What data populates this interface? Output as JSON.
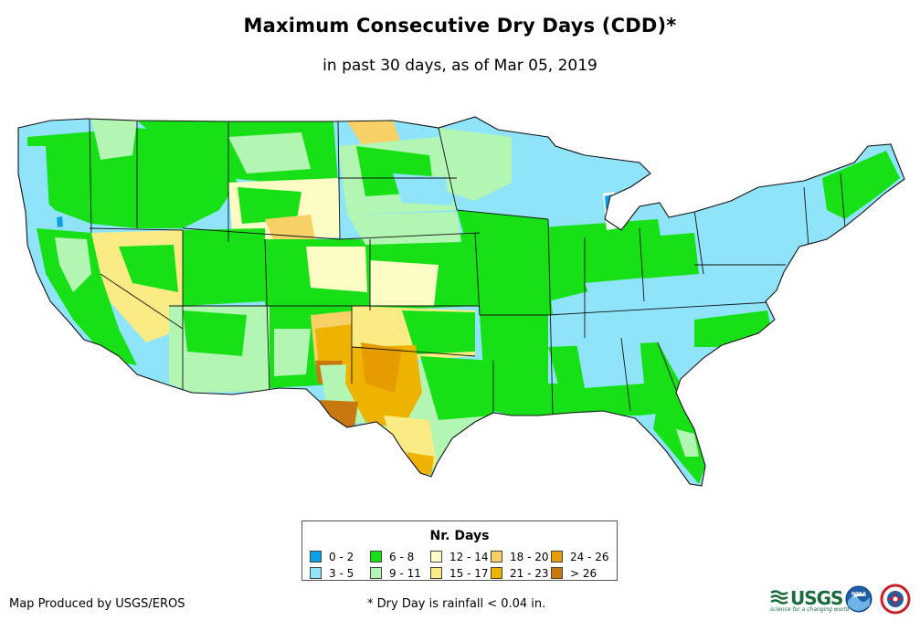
{
  "title": "Maximum Consecutive Dry Days (CDD)*",
  "subtitle": "in past 30 days, as of Mar 05, 2019",
  "map": {
    "region": "Contiguous United States",
    "variable": "Maximum consecutive dry days"
  },
  "legend": {
    "title": "Nr. Days",
    "items": [
      {
        "label": "0 - 2",
        "color": "#0aa0e8"
      },
      {
        "label": "3 - 5",
        "color": "#8fe4fa"
      },
      {
        "label": "6 - 8",
        "color": "#17e017"
      },
      {
        "label": "9 - 11",
        "color": "#b3f5b3"
      },
      {
        "label": "12 - 14",
        "color": "#fcfcc4"
      },
      {
        "label": "15 - 17",
        "color": "#fbeb85"
      },
      {
        "label": "18 - 20",
        "color": "#f7d066"
      },
      {
        "label": "21 - 23",
        "color": "#eeb200"
      },
      {
        "label": "24 - 26",
        "color": "#e59c00"
      },
      {
        "label": "> 26",
        "color": "#c7790f"
      }
    ]
  },
  "credit": "Map Produced by USGS/EROS",
  "footnote": "* Dry Day is rainfall < 0.04 in.",
  "logos": {
    "usgs_text": "USGS",
    "usgs_tagline": "science for a changing world",
    "noaa_text": "NOAA"
  }
}
